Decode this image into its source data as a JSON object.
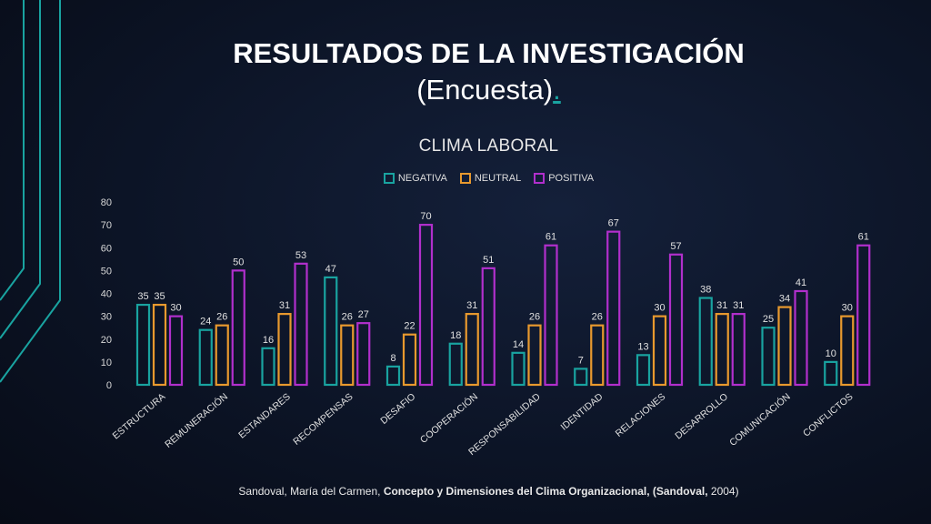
{
  "slide": {
    "title_line1": "RESULTADOS DE LA INVESTIGACIÓN",
    "title_line2": "(Encuesta)",
    "title_dot": "."
  },
  "source": {
    "prefix": "Sandoval, María del Carmen, ",
    "bold": "Concepto y Dimensiones del Clima Organizacional, (Sandoval,",
    "suffix": " 2004)"
  },
  "colors": {
    "negativa": "#19a3a0",
    "neutral": "#e8992e",
    "positiva": "#b12fcc",
    "accent": "#19a3a0"
  },
  "chart_data": {
    "type": "bar",
    "title": "CLIMA LABORAL",
    "categories": [
      "ESTRUCTURA",
      "REMUNERACIÓN",
      "ESTANDARES",
      "RECOMPENSAS",
      "DESAFIO",
      "COOPERACIÓN",
      "RESPONSABILIDAD",
      "IDENTIDAD",
      "RELACIONES",
      "DESARROLLO",
      "COMUNICACIÓN",
      "CONFLICTOS"
    ],
    "series": [
      {
        "name": "NEGATIVA",
        "values": [
          35,
          24,
          16,
          47,
          8,
          18,
          14,
          7,
          13,
          38,
          25,
          10
        ]
      },
      {
        "name": "NEUTRAL",
        "values": [
          35,
          26,
          31,
          26,
          22,
          31,
          26,
          26,
          30,
          31,
          34,
          30
        ]
      },
      {
        "name": "POSITIVA",
        "values": [
          30,
          50,
          53,
          27,
          70,
          51,
          61,
          67,
          57,
          31,
          41,
          61
        ]
      }
    ],
    "yticks": [
      "0",
      "10",
      "20",
      "30",
      "40",
      "50",
      "60",
      "70",
      "80"
    ],
    "ylim": [
      0,
      80
    ],
    "legend": "top",
    "grid": false
  }
}
